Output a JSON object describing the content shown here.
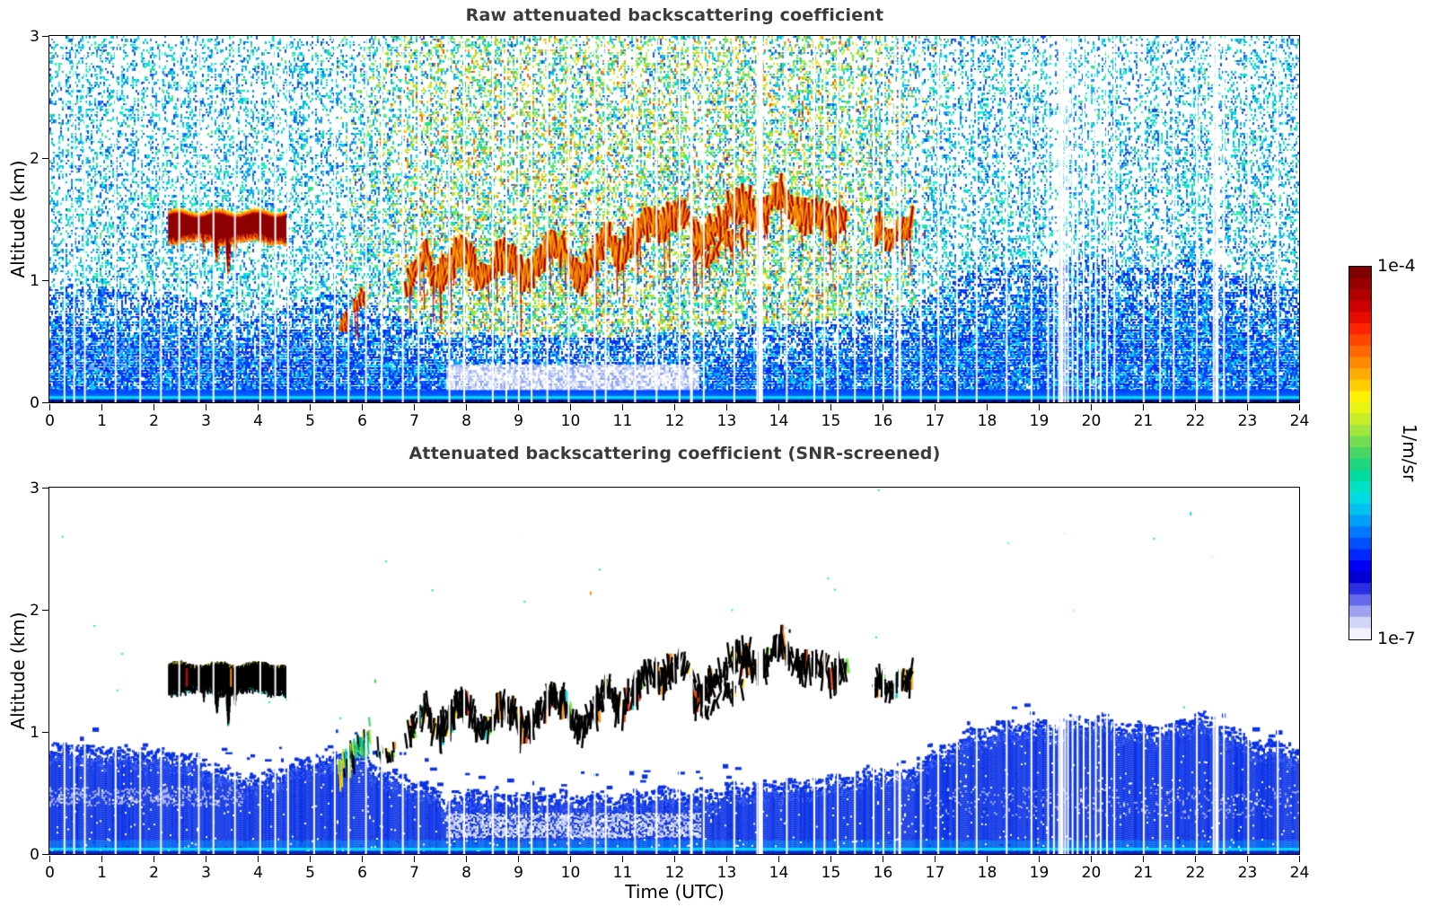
{
  "figure": {
    "top_panel": {
      "title": "Raw attenuated backscattering coefficient",
      "ylabel": "Altitude (km)",
      "yticks": [
        3,
        2,
        1,
        0
      ],
      "xticks": [
        0,
        1,
        2,
        3,
        4,
        5,
        6,
        7,
        8,
        9,
        10,
        11,
        12,
        13,
        14,
        15,
        16,
        17,
        18,
        19,
        20,
        21,
        22,
        23,
        24
      ]
    },
    "bottom_panel": {
      "title": "Attenuated backscattering coefficient (SNR-screened)",
      "ylabel": "Altitude (km)",
      "xlabel": "Time (UTC)",
      "yticks": [
        3,
        2,
        1,
        0
      ],
      "xticks": [
        0,
        1,
        2,
        3,
        4,
        5,
        6,
        7,
        8,
        9,
        10,
        11,
        12,
        13,
        14,
        15,
        16,
        17,
        18,
        19,
        20,
        21,
        22,
        23,
        24
      ]
    },
    "colorbar": {
      "max_label": "1e-4",
      "min_label": "1e-7",
      "unit_label": "1/m/sr",
      "stops_top_to_bottom": [
        "#7f0000",
        "#960000",
        "#b00000",
        "#cd0000",
        "#e80c00",
        "#ff2400",
        "#ff4600",
        "#ff6800",
        "#ff8a00",
        "#ffac00",
        "#ffce00",
        "#fff000",
        "#e8f414",
        "#c8ee28",
        "#a0e63c",
        "#74de52",
        "#48d668",
        "#1ed67e",
        "#00dca0",
        "#00e2c4",
        "#00dce6",
        "#00c2f0",
        "#00a0fa",
        "#0078ff",
        "#0050ff",
        "#0028ff",
        "#0000f4",
        "#0000d2",
        "#2a2ee2",
        "#6468ea",
        "#9ea2f0",
        "#d2d4f8",
        "#f2f2fd"
      ]
    }
  },
  "chart_data": [
    {
      "type": "heatmap",
      "title": "Raw attenuated backscattering coefficient",
      "xlabel": "Time (UTC)",
      "ylabel": "Altitude (km)",
      "xlim": [
        0,
        24
      ],
      "ylim": [
        0,
        3
      ],
      "xticks": [
        0,
        1,
        2,
        3,
        4,
        5,
        6,
        7,
        8,
        9,
        10,
        11,
        12,
        13,
        14,
        15,
        16,
        17,
        18,
        19,
        20,
        21,
        22,
        23,
        24
      ],
      "yticks": [
        0,
        1,
        2,
        3
      ],
      "value_scale": {
        "min": 1e-07,
        "max": 0.0001,
        "units": "1/m/sr",
        "scale": "log",
        "colormap": "jet-like, white/lavender at low end"
      },
      "description": "Ceilometer raw attenuated backscatter: speckled solar/background noise aloft (blue-cyan at night, green-yellow-orange 06-17 UTC), dense blue aerosol below ~0.8 km, bright near-surface return, dark-red cloud layers, and white vertical data-gap lines.",
      "features": {
        "stratus_layer": {
          "t_start": 2.28,
          "t_end": 4.52,
          "alt_top_km": 1.53,
          "alt_base_km": 1.37,
          "dips": [
            [
              2.95,
              1.27,
              0.04
            ],
            [
              3.2,
              1.16,
              0.05
            ],
            [
              3.42,
              1.05,
              0.035
            ],
            [
              3.55,
              1.2,
              0.03
            ]
          ]
        },
        "rising_plume_1": {
          "skip": 0.45,
          "jit": 0.1,
          "lmin": 6,
          "lvar": 10,
          "pts": [
            [
              5.56,
              0.6
            ],
            [
              5.72,
              0.74
            ],
            [
              5.86,
              0.84
            ],
            [
              5.98,
              0.88
            ],
            [
              6.1,
              0.8
            ]
          ]
        },
        "rising_plume_2": {
          "skip": 0.3,
          "jit": 0.12,
          "lmin": 8,
          "lvar": 16,
          "pts": [
            [
              6.85,
              0.9
            ],
            [
              7.0,
              1.04
            ],
            [
              7.12,
              1.14
            ],
            [
              7.26,
              1.2
            ],
            [
              7.38,
              1.08
            ]
          ]
        },
        "main_cloud_band": {
          "skip": 0.3,
          "jit": 0.14,
          "lmin": 12,
          "lvar": 20,
          "pts": [
            [
              7.45,
              1.05
            ],
            [
              7.65,
              1.12
            ],
            [
              7.85,
              1.2
            ],
            [
              8.05,
              1.17
            ],
            [
              8.25,
              1.04
            ],
            [
              8.45,
              1.1
            ],
            [
              8.65,
              1.2
            ],
            [
              8.85,
              1.12
            ],
            [
              9.05,
              1.06
            ],
            [
              9.25,
              1.12
            ],
            [
              9.45,
              1.18
            ],
            [
              9.65,
              1.27
            ],
            [
              9.85,
              1.22
            ],
            [
              10.05,
              1.1
            ],
            [
              10.25,
              1.06
            ],
            [
              10.45,
              1.16
            ],
            [
              10.65,
              1.3
            ],
            [
              10.85,
              1.3
            ],
            [
              11.05,
              1.27
            ],
            [
              11.25,
              1.35
            ],
            [
              11.45,
              1.43
            ],
            [
              11.65,
              1.48
            ],
            [
              11.85,
              1.52
            ],
            [
              12.05,
              1.57
            ],
            [
              12.25,
              1.45
            ],
            [
              12.45,
              1.33
            ],
            [
              12.65,
              1.42
            ],
            [
              12.85,
              1.48
            ],
            [
              13.05,
              1.52
            ],
            [
              13.25,
              1.6
            ],
            [
              13.45,
              1.64
            ],
            [
              13.65,
              1.56
            ],
            [
              13.85,
              1.6
            ],
            [
              14.05,
              1.67
            ],
            [
              14.25,
              1.62
            ],
            [
              14.45,
              1.56
            ],
            [
              14.65,
              1.58
            ],
            [
              14.85,
              1.5
            ],
            [
              15.05,
              1.44
            ],
            [
              15.3,
              1.6
            ]
          ]
        },
        "secondary_band": {
          "skip": 0.55,
          "jit": 0.1,
          "lmin": 8,
          "lvar": 12,
          "pts": [
            [
              12.35,
              1.25
            ],
            [
              12.6,
              1.2
            ],
            [
              12.85,
              1.3
            ],
            [
              13.1,
              1.28
            ],
            [
              13.35,
              1.35
            ]
          ]
        },
        "late_cloud": {
          "skip": 0.25,
          "jit": 0.1,
          "lmin": 10,
          "lvar": 16,
          "pts": [
            [
              15.82,
              1.32
            ],
            [
              15.95,
              1.44
            ],
            [
              16.1,
              1.36
            ],
            [
              16.28,
              1.46
            ],
            [
              16.44,
              1.36
            ],
            [
              16.56,
              1.44
            ]
          ]
        }
      },
      "gaps": {
        "auto": {
          "start": 0.29,
          "step_min": 0.18,
          "step_rand": 0.42,
          "width": 2
        },
        "cluster": {
          "t0": 19.18,
          "t1": 20.34,
          "step_min": 0.045,
          "step_rand": 0.08,
          "width": 2
        },
        "wide": [
          [
            12.33,
            3
          ],
          [
            13.66,
            5
          ],
          [
            16.33,
            3
          ],
          [
            19.44,
            4
          ],
          [
            22.42,
            4
          ]
        ]
      },
      "render_palettes": {
        "night_high": [
          "#0a50ff",
          "#0a50ff",
          "#1e8cff",
          "#1e8cff",
          "#00b4ff",
          "#00b4ff",
          "#00e0e0",
          "#00e0e0",
          "#00ffb4",
          "#50e678",
          "#ffffff"
        ],
        "day_high": [
          "#00c8ff",
          "#00e6b4",
          "#50e65a",
          "#50e65a",
          "#96e632",
          "#96e632",
          "#d2e61e",
          "#d2e61e",
          "#ffd700",
          "#ffa500",
          "#ff5a00",
          "#1e64ff",
          "#00b4ff"
        ],
        "low_blue": [
          "#0026f0",
          "#0026f0",
          "#0040ff",
          "#0040ff",
          "#0064ff",
          "#0090ff",
          "#00b8ff",
          "#00e0ff"
        ],
        "light_band": [
          "#8ca6ff",
          "#b4c4ff",
          "#d2dcff",
          "#ffffff"
        ],
        "cloud_core": "#8f0000",
        "cloud_mid": "#ff2400",
        "cloud_orange": "#ff8c00",
        "cloud_fringe": "#ffe100",
        "surface_cyan_line": "#00e8ff",
        "surface_bright": "#0070ff",
        "surface_navy": "#0a1488"
      }
    },
    {
      "type": "heatmap",
      "title": "Attenuated backscattering coefficient (SNR-screened)",
      "xlabel": "Time (UTC)",
      "ylabel": "Altitude (km)",
      "xlim": [
        0,
        24
      ],
      "ylim": [
        0,
        3
      ],
      "xticks": [
        0,
        1,
        2,
        3,
        4,
        5,
        6,
        7,
        8,
        9,
        10,
        11,
        12,
        13,
        14,
        15,
        16,
        17,
        18,
        19,
        20,
        21,
        22,
        23,
        24
      ],
      "yticks": [
        0,
        1,
        2,
        3
      ],
      "value_scale": {
        "min": 1e-07,
        "max": 0.0001,
        "units": "1/m/sr",
        "scale": "log"
      },
      "description": "Same scene after SNR screening: noise removed (white), solid blue boundary layer with fluffy top, lavender/whitish intrusions, saturated cloud streaks rendered black with sparse colored fringes.",
      "boundary_layer_top_km": [
        [
          0,
          0.8
        ],
        [
          0.4,
          0.84
        ],
        [
          0.8,
          0.78
        ],
        [
          1.2,
          0.8
        ],
        [
          1.6,
          0.76
        ],
        [
          2.0,
          0.78
        ],
        [
          2.4,
          0.76
        ],
        [
          2.8,
          0.72
        ],
        [
          3.2,
          0.65
        ],
        [
          3.6,
          0.58
        ],
        [
          4.0,
          0.56
        ],
        [
          4.4,
          0.62
        ],
        [
          4.8,
          0.7
        ],
        [
          5.2,
          0.74
        ],
        [
          5.6,
          0.76
        ],
        [
          6.0,
          0.72
        ],
        [
          6.4,
          0.62
        ],
        [
          6.8,
          0.55
        ],
        [
          7.2,
          0.52
        ],
        [
          7.6,
          0.38
        ],
        [
          8.0,
          0.42
        ],
        [
          8.4,
          0.45
        ],
        [
          8.8,
          0.42
        ],
        [
          9.2,
          0.4
        ],
        [
          9.6,
          0.42
        ],
        [
          10.0,
          0.4
        ],
        [
          10.4,
          0.42
        ],
        [
          10.8,
          0.4
        ],
        [
          11.2,
          0.42
        ],
        [
          11.6,
          0.45
        ],
        [
          12.0,
          0.44
        ],
        [
          12.4,
          0.42
        ],
        [
          12.8,
          0.46
        ],
        [
          13.2,
          0.48
        ],
        [
          13.6,
          0.5
        ],
        [
          14.0,
          0.52
        ],
        [
          14.4,
          0.5
        ],
        [
          14.8,
          0.54
        ],
        [
          15.2,
          0.56
        ],
        [
          15.6,
          0.6
        ],
        [
          16.0,
          0.62
        ],
        [
          16.4,
          0.6
        ],
        [
          16.8,
          0.72
        ],
        [
          17.2,
          0.82
        ],
        [
          17.6,
          0.92
        ],
        [
          18.0,
          0.96
        ],
        [
          18.4,
          1.0
        ],
        [
          18.8,
          1.02
        ],
        [
          19.2,
          1.0
        ],
        [
          19.6,
          1.02
        ],
        [
          20.0,
          1.06
        ],
        [
          20.4,
          1.02
        ],
        [
          20.8,
          0.98
        ],
        [
          21.2,
          0.96
        ],
        [
          21.6,
          1.0
        ],
        [
          22.0,
          1.08
        ],
        [
          22.4,
          1.0
        ],
        [
          22.8,
          0.92
        ],
        [
          23.2,
          0.85
        ],
        [
          23.6,
          0.83
        ],
        [
          24,
          0.8
        ]
      ],
      "features": {
        "green_column": {
          "t0": 5.55,
          "t1": 6.15,
          "alt0": 0.64,
          "alt1": 0.95
        },
        "dark_wisps": {
          "t0": 6.28,
          "t1": 6.62,
          "alt0": 0.78,
          "alt1": 1.0
        },
        "embedded_columns": [
          [
            2.62,
            "#e00000"
          ],
          [
            3.47,
            "#ff8c00"
          ]
        ],
        "specks": [
          [
            10.38,
            2.15,
            "#ff9500"
          ],
          [
            14.2,
            1.84,
            "#000000"
          ],
          [
            6.24,
            1.43,
            "#2fd45f"
          ],
          [
            21.9,
            2.8,
            "#00e6d2"
          ],
          [
            9.0,
            2.62,
            "#00e6d2"
          ]
        ]
      },
      "render_colors": {
        "bl_base": "#0a32e6",
        "bl_dark": "#0722c8",
        "bl_light": "#2e55f5",
        "lavender": "#a2acf2",
        "pale_band": "#cdd6fa",
        "pale_band2": "#8c9cf0",
        "cloud_black": "#000000",
        "fringe_colors": [
          "#ffe100",
          "#6be43c",
          "#00d8e0",
          "#ff3c00",
          "#ff9000"
        ]
      }
    }
  ]
}
